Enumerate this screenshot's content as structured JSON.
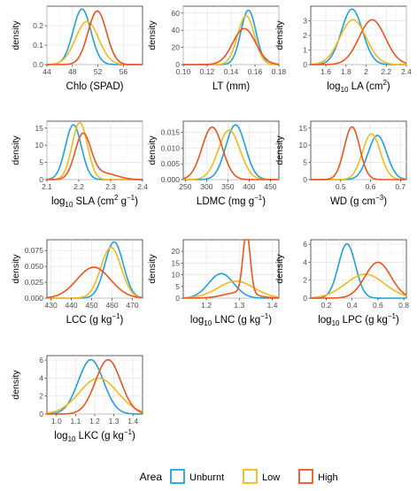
{
  "legend": {
    "title": "Area",
    "entries": [
      {
        "name": "Unburnt",
        "color": "#1fa2dc"
      },
      {
        "name": "Low",
        "color": "#f5b91b"
      },
      {
        "name": "High",
        "color": "#ee5322"
      }
    ],
    "placement": "bottom"
  },
  "chart_data": [
    {
      "type": "line",
      "xlabel": "Chlo (SPAD)",
      "ylabel": "density",
      "xlim": [
        44,
        59
      ],
      "ylim": [
        0,
        0.3
      ],
      "xticks": [
        44,
        48,
        52,
        56
      ],
      "yticks": [
        0.0,
        0.1,
        0.2
      ],
      "ytick_labels": [
        "0.0",
        "0.1",
        "0.2"
      ],
      "grid": true,
      "series": [
        {
          "name": "Unburnt",
          "curves": [
            {
              "mu": 49.5,
              "sd": 1.4,
              "w": 1.0
            }
          ]
        },
        {
          "name": "Low",
          "curves": [
            {
              "mu": 50.3,
              "sd": 1.8,
              "w": 1.0
            }
          ]
        },
        {
          "name": "High",
          "curves": [
            {
              "mu": 51.9,
              "sd": 1.45,
              "w": 1.0
            }
          ]
        }
      ]
    },
    {
      "type": "line",
      "xlabel": "LT (mm)",
      "ylabel": "density",
      "xlim": [
        0.1,
        0.18
      ],
      "ylim": [
        0,
        68
      ],
      "xticks": [
        0.1,
        0.12,
        0.14,
        0.16,
        0.18
      ],
      "xtick_labels": [
        "0.10",
        "0.12",
        "0.14",
        "0.16",
        "0.18"
      ],
      "yticks": [
        0,
        20,
        40,
        60
      ],
      "grid": true,
      "series": [
        {
          "name": "Unburnt",
          "curves": [
            {
              "mu": 0.1545,
              "sd": 0.0063,
              "w": 1.0
            }
          ]
        },
        {
          "name": "Low",
          "curves": [
            {
              "mu": 0.1525,
              "sd": 0.007,
              "w": 1.0
            }
          ]
        },
        {
          "name": "High",
          "curves": [
            {
              "mu": 0.151,
              "sd": 0.0095,
              "w": 1.0
            }
          ]
        }
      ]
    },
    {
      "type": "line",
      "xlabel": "log10 LA (cm2)",
      "xlabel_parts": [
        {
          "t": "log"
        },
        {
          "t": "10",
          "sub": true
        },
        {
          "t": " LA (cm"
        },
        {
          "t": "2",
          "sup": true
        },
        {
          "t": ")"
        }
      ],
      "ylabel": "density",
      "xlim": [
        1.45,
        2.4
      ],
      "ylim": [
        0,
        4.0
      ],
      "xticks": [
        1.6,
        1.8,
        2.0,
        2.2,
        2.4
      ],
      "yticks": [
        0,
        1,
        2,
        3
      ],
      "grid": true,
      "series": [
        {
          "name": "Unburnt",
          "curves": [
            {
              "mu": 1.86,
              "sd": 0.105,
              "w": 1.0
            }
          ]
        },
        {
          "name": "Low",
          "curves": [
            {
              "mu": 1.87,
              "sd": 0.13,
              "w": 1.0
            }
          ]
        },
        {
          "name": "High",
          "curves": [
            {
              "mu": 2.06,
              "sd": 0.13,
              "w": 1.0
            }
          ]
        }
      ]
    },
    {
      "type": "line",
      "xlabel": "log10 SLA (cm2 g-1)",
      "xlabel_parts": [
        {
          "t": "log"
        },
        {
          "t": "10",
          "sub": true
        },
        {
          "t": " SLA (cm"
        },
        {
          "t": "2",
          "sup": true
        },
        {
          "t": " g"
        },
        {
          "t": "−1",
          "sup": true
        },
        {
          "t": ")"
        }
      ],
      "ylabel": "density",
      "xlim": [
        2.1,
        2.4
      ],
      "ylim": [
        0,
        17
      ],
      "xticks": [
        2.1,
        2.2,
        2.3,
        2.4
      ],
      "yticks": [
        0,
        5,
        10,
        15
      ],
      "grid": true,
      "series": [
        {
          "name": "Unburnt",
          "curves": [
            {
              "mu": 2.183,
              "sd": 0.025,
              "w": 1.0
            }
          ]
        },
        {
          "name": "Low",
          "curves": [
            {
              "mu": 2.203,
              "sd": 0.024,
              "w": 1.0
            }
          ]
        },
        {
          "name": "High",
          "curves": [
            {
              "mu": 2.213,
              "sd": 0.025,
              "w": 0.82
            },
            {
              "mu": 2.28,
              "sd": 0.04,
              "w": 0.18
            }
          ]
        }
      ]
    },
    {
      "type": "line",
      "xlabel": "LDMC (mg g-1)",
      "xlabel_parts": [
        {
          "t": "LDMC (mg g"
        },
        {
          "t": "−1",
          "sup": true
        },
        {
          "t": ")"
        }
      ],
      "ylabel": "density",
      "xlim": [
        245,
        470
      ],
      "ylim": [
        0,
        0.0185
      ],
      "xticks": [
        250,
        300,
        350,
        400,
        450
      ],
      "yticks": [
        0,
        0.005,
        0.01,
        0.015
      ],
      "ytick_labels": [
        "0.000",
        "0.005",
        "0.010",
        "0.015"
      ],
      "grid": true,
      "series": [
        {
          "name": "Unburnt",
          "curves": [
            {
              "mu": 368,
              "sd": 23,
              "w": 1.0
            }
          ]
        },
        {
          "name": "Low",
          "curves": [
            {
              "mu": 353,
              "sd": 25.5,
              "w": 1.0
            }
          ]
        },
        {
          "name": "High",
          "curves": [
            {
              "mu": 313,
              "sd": 24,
              "w": 1.0
            }
          ]
        }
      ]
    },
    {
      "type": "line",
      "xlabel": "WD (g cm-3)",
      "xlabel_parts": [
        {
          "t": "WD (g cm"
        },
        {
          "t": "−3",
          "sup": true
        },
        {
          "t": ")"
        }
      ],
      "ylabel": "density",
      "xlim": [
        0.4,
        0.72
      ],
      "ylim": [
        0,
        17
      ],
      "xticks": [
        0.5,
        0.6,
        0.7
      ],
      "yticks": [
        0,
        5,
        10,
        15
      ],
      "grid": true,
      "series": [
        {
          "name": "Unburnt",
          "curves": [
            {
              "mu": 0.623,
              "sd": 0.031,
              "w": 1.0
            }
          ]
        },
        {
          "name": "Low",
          "curves": [
            {
              "mu": 0.603,
              "sd": 0.03,
              "w": 1.0
            }
          ]
        },
        {
          "name": "High",
          "curves": [
            {
              "mu": 0.538,
              "sd": 0.026,
              "w": 1.0
            }
          ]
        }
      ]
    },
    {
      "type": "line",
      "xlabel": "LCC (g kg-1)",
      "xlabel_parts": [
        {
          "t": "LCC (g kg"
        },
        {
          "t": "−1",
          "sup": true
        },
        {
          "t": ")"
        }
      ],
      "ylabel": "density",
      "xlim": [
        428,
        475
      ],
      "ylim": [
        0,
        0.092
      ],
      "xticks": [
        430,
        440,
        450,
        460,
        470
      ],
      "yticks": [
        0,
        0.025,
        0.05,
        0.075
      ],
      "ytick_labels": [
        "0.000",
        "0.025",
        "0.050",
        "0.075"
      ],
      "grid": true,
      "series": [
        {
          "name": "Unburnt",
          "curves": [
            {
              "mu": 461,
              "sd": 4.5,
              "w": 1.0
            }
          ]
        },
        {
          "name": "Low",
          "curves": [
            {
              "mu": 459.5,
              "sd": 5,
              "w": 1.0
            }
          ]
        },
        {
          "name": "High",
          "curves": [
            {
              "mu": 451,
              "sd": 8.2,
              "w": 1.0
            }
          ]
        }
      ]
    },
    {
      "type": "line",
      "xlabel": "log10 LNC (g kg-1)",
      "xlabel_parts": [
        {
          "t": "log"
        },
        {
          "t": "10",
          "sub": true
        },
        {
          "t": " LNC (g kg"
        },
        {
          "t": "−1",
          "sup": true
        },
        {
          "t": ")"
        }
      ],
      "ylabel": "density",
      "xlim": [
        1.13,
        1.42
      ],
      "ylim": [
        0,
        25
      ],
      "xticks": [
        1.2,
        1.3,
        1.4
      ],
      "yticks": [
        0,
        5,
        10,
        15,
        20
      ],
      "grid": true,
      "series": [
        {
          "name": "Unburnt",
          "curves": [
            {
              "mu": 1.245,
              "sd": 0.038,
              "w": 1.0
            }
          ]
        },
        {
          "name": "Low",
          "curves": [
            {
              "mu": 1.29,
              "sd": 0.055,
              "w": 1.0
            }
          ]
        },
        {
          "name": "High",
          "curves": [
            {
              "mu": 1.322,
              "sd": 0.011,
              "w": 0.72
            },
            {
              "mu": 1.3,
              "sd": 0.045,
              "w": 0.28
            }
          ]
        }
      ]
    },
    {
      "type": "line",
      "xlabel": "log10 LPC (g kg-1)",
      "xlabel_parts": [
        {
          "t": "log"
        },
        {
          "t": "10",
          "sub": true
        },
        {
          "t": " LPC (g kg"
        },
        {
          "t": "−1",
          "sup": true
        },
        {
          "t": ")"
        }
      ],
      "ylabel": "density",
      "xlim": [
        0.08,
        0.82
      ],
      "ylim": [
        0,
        6.5
      ],
      "xticks": [
        0.2,
        0.4,
        0.6,
        0.8
      ],
      "xtick_labels": [
        "0.2",
        "0.4",
        "0.6",
        "0.8"
      ],
      "yticks": [
        0,
        2,
        4,
        6
      ],
      "grid": true,
      "series": [
        {
          "name": "Unburnt",
          "curves": [
            {
              "mu": 0.36,
              "sd": 0.066,
              "w": 1.0
            }
          ]
        },
        {
          "name": "Low",
          "curves": [
            {
              "mu": 0.5,
              "sd": 0.15,
              "w": 1.0
            }
          ]
        },
        {
          "name": "High",
          "curves": [
            {
              "mu": 0.6,
              "sd": 0.1,
              "w": 1.0
            }
          ]
        }
      ]
    },
    {
      "type": "line",
      "xlabel": "log10 LKC (g kg-1)",
      "xlabel_parts": [
        {
          "t": "log"
        },
        {
          "t": "10",
          "sub": true
        },
        {
          "t": " LKC (g kg"
        },
        {
          "t": "−1",
          "sup": true
        },
        {
          "t": ")"
        }
      ],
      "ylabel": "density",
      "xlim": [
        0.95,
        1.45
      ],
      "ylim": [
        0,
        6.5
      ],
      "xticks": [
        1.0,
        1.1,
        1.2,
        1.3,
        1.4
      ],
      "xtick_labels": [
        "1.0",
        "1.1",
        "1.2",
        "1.3",
        "1.4"
      ],
      "yticks": [
        0,
        2,
        4,
        6
      ],
      "grid": true,
      "series": [
        {
          "name": "Unburnt",
          "curves": [
            {
              "mu": 1.18,
              "sd": 0.066,
              "w": 1.0
            }
          ]
        },
        {
          "name": "Low",
          "curves": [
            {
              "mu": 1.22,
              "sd": 0.1,
              "w": 1.0
            }
          ]
        },
        {
          "name": "High",
          "curves": [
            {
              "mu": 1.27,
              "sd": 0.066,
              "w": 1.0
            }
          ]
        }
      ]
    }
  ]
}
